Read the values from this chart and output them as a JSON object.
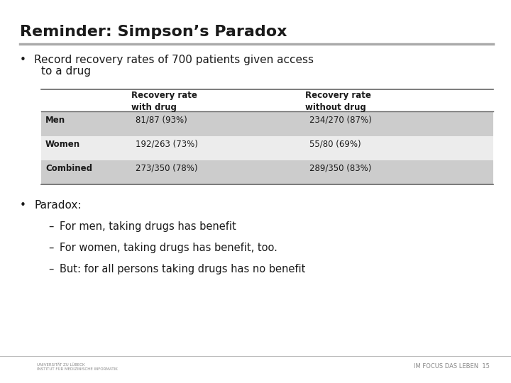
{
  "title": "Reminder: Simpson’s Paradox",
  "bullet1_line1": "Record recovery rates of 700 patients given access",
  "bullet1_line2": "to a drug",
  "table_headers": [
    "",
    "Recovery rate\nwith drug",
    "Recovery rate\nwithout drug"
  ],
  "table_rows": [
    [
      "Men",
      "81/87 (93%)",
      "234/270 (87%)"
    ],
    [
      "Women",
      "192/263 (73%)",
      "55/80 (69%)"
    ],
    [
      "Combined",
      "273/350 (78%)",
      "289/350 (83%)"
    ]
  ],
  "row_colors": [
    "#cccccc",
    "#ececec",
    "#cccccc"
  ],
  "bullet2": "Paradox:",
  "sub_bullets": [
    "For men, taking drugs has benefit",
    "For women, taking drugs has benefit, too.",
    "But: for all persons taking drugs has no benefit"
  ],
  "footer_right": "IM FOCUS DAS LEBEN",
  "page_number": "15",
  "bg_color": "#ffffff",
  "title_color": "#1a1a1a",
  "separator_color": "#aaaaaa",
  "table_line_color": "#666666"
}
